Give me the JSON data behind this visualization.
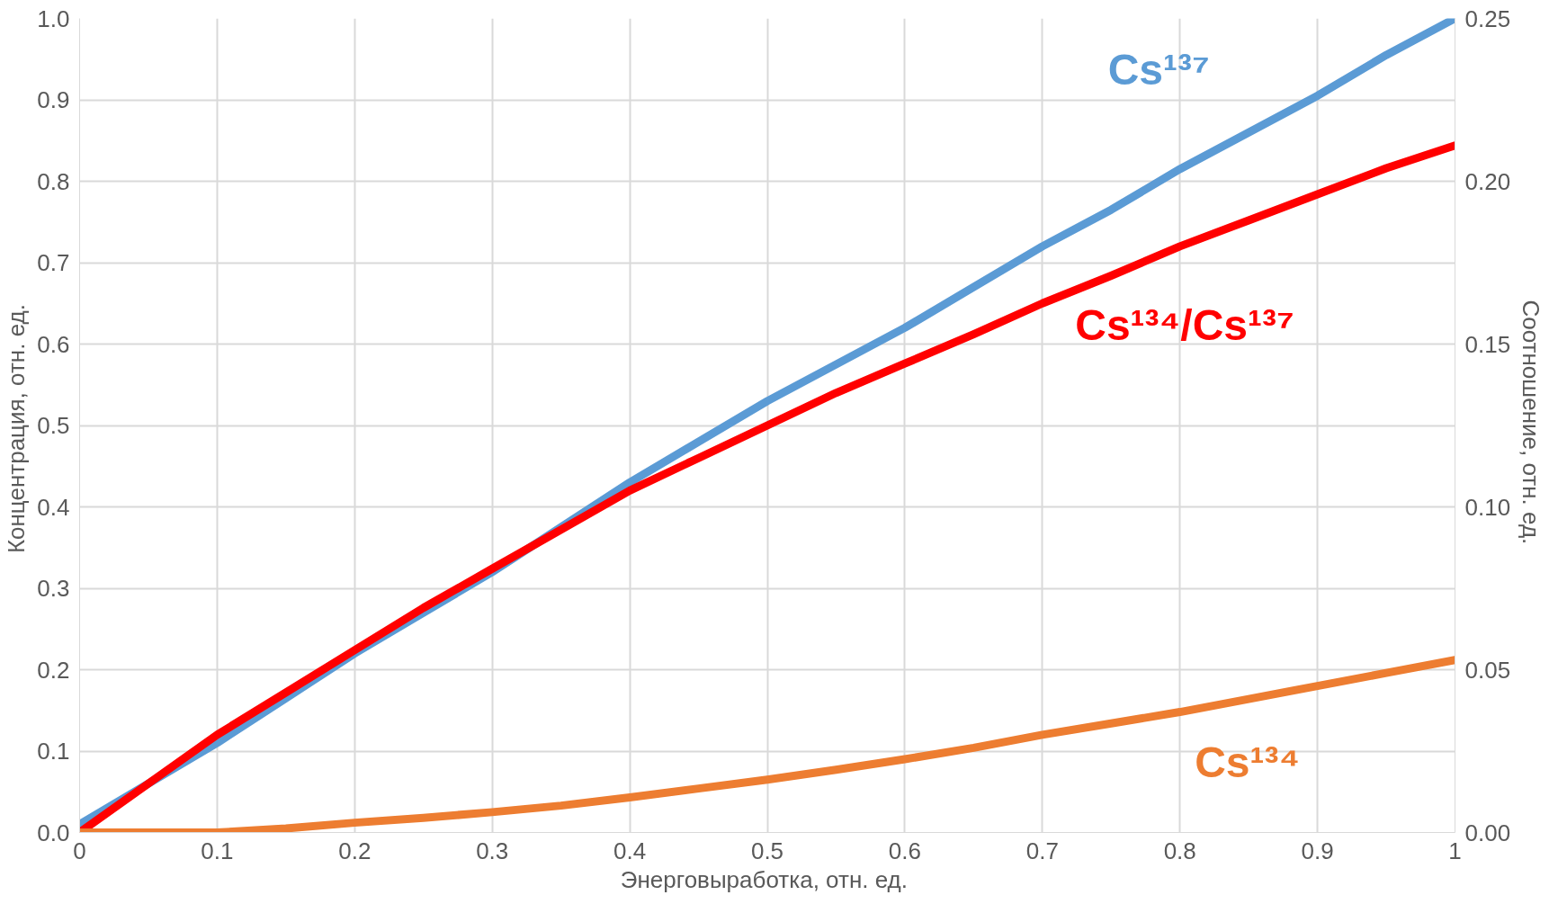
{
  "chart_data": {
    "type": "line",
    "xlabel": "Энерговыработка,  отн. ед.",
    "ylabel": "Концентрация,  отн. ед.",
    "y2label": "Соотношение,  отн. ед.",
    "x": [
      0,
      0.05,
      0.1,
      0.15,
      0.2,
      0.25,
      0.3,
      0.35,
      0.4,
      0.45,
      0.5,
      0.55,
      0.6,
      0.65,
      0.7,
      0.75,
      0.8,
      0.85,
      0.9,
      0.95,
      1.0
    ],
    "series": [
      {
        "name": "Cs¹³⁷",
        "color": "#5b9bd5",
        "values": [
          0.01,
          0.06,
          0.11,
          0.165,
          0.22,
          0.27,
          0.32,
          0.375,
          0.43,
          0.48,
          0.53,
          0.575,
          0.62,
          0.67,
          0.72,
          0.765,
          0.815,
          0.86,
          0.905,
          0.955,
          1.0
        ]
      },
      {
        "name": "Cs¹³⁴/Cs¹³⁷",
        "color": "#ff0000",
        "axis": "y2",
        "values": [
          0.0,
          0.015,
          0.03,
          0.043,
          0.056,
          0.069,
          0.081,
          0.093,
          0.105,
          0.115,
          0.125,
          0.135,
          0.144,
          0.153,
          0.1625,
          0.171,
          0.18,
          0.188,
          0.196,
          0.204,
          0.211
        ]
      },
      {
        "name": "Cs¹³⁴",
        "color": "#ed7d31",
        "values": [
          0.0,
          0.0,
          0.0,
          0.005,
          0.012,
          0.018,
          0.025,
          0.033,
          0.043,
          0.054,
          0.065,
          0.077,
          0.09,
          0.104,
          0.12,
          0.134,
          0.148,
          0.164,
          0.18,
          0.196,
          0.212
        ]
      }
    ],
    "xlim": [
      0,
      1
    ],
    "xticks": [
      0,
      0.1,
      0.2,
      0.3,
      0.4,
      0.5,
      0.6,
      0.7,
      0.8,
      0.9,
      1
    ],
    "ylim": [
      0,
      1
    ],
    "yticks": [
      {
        "value": 0,
        "label": "0.0"
      },
      0.1,
      0.2,
      0.3,
      0.4,
      0.5,
      0.6,
      0.7,
      0.8,
      0.9,
      {
        "value": 1,
        "label": "1.0"
      }
    ],
    "y2lim": [
      0,
      0.25
    ],
    "y2ticks": [
      {
        "value": 0,
        "label": "0.00"
      },
      {
        "value": 0.05,
        "label": "0.05"
      },
      {
        "value": 0.1,
        "label": "0.10"
      },
      {
        "value": 0.15,
        "label": "0.15"
      },
      {
        "value": 0.2,
        "label": "0.20"
      },
      {
        "value": 0.25,
        "label": "0.25"
      }
    ],
    "grid": true,
    "line_style": "solid",
    "marker": "none"
  }
}
